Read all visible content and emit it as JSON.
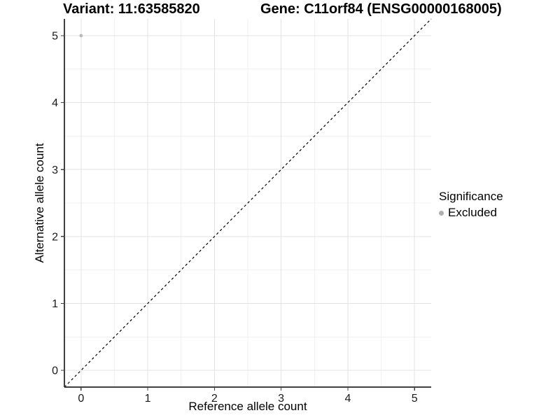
{
  "figure": {
    "title_left": "Variant: 11:63585820",
    "title_right": "Gene: C11orf84 (ENSG00000168005)"
  },
  "axes": {
    "x": {
      "label": "Reference allele count"
    },
    "y": {
      "label": "Alternative allele count"
    }
  },
  "legend": {
    "title": "Significance",
    "entries": [
      {
        "label": "Excluded",
        "color": "#b0b0b0"
      }
    ]
  },
  "chart_data": {
    "type": "scatter",
    "title": "Variant: 11:63585820    Gene: C11orf84 (ENSG00000168005)",
    "xlabel": "Reference allele count",
    "ylabel": "Alternative allele count",
    "xlim": [
      -0.25,
      5.25
    ],
    "ylim": [
      -0.25,
      5.25
    ],
    "x_ticks": [
      0,
      1,
      2,
      3,
      4,
      5
    ],
    "y_ticks": [
      0,
      1,
      2,
      3,
      4,
      5
    ],
    "grid": "major gridlines at integers, minor gridlines at 0.5 steps, light gray, on white background",
    "legend_position": "right-center",
    "series": [
      {
        "name": "Excluded",
        "color": "#b9b9b9",
        "points": [
          [
            0,
            5
          ]
        ]
      }
    ],
    "annotations": [
      {
        "type": "abline",
        "slope": 1,
        "intercept": 0,
        "style": "dashed",
        "color": "#000000",
        "note": "y = x identity line spanning the panel corner to corner"
      }
    ],
    "colors": {
      "grid_major": "#e3e3e3",
      "grid_minor": "#f1f1f1",
      "axis_line": "#404040",
      "tick_label": "#1a1a1a"
    }
  }
}
